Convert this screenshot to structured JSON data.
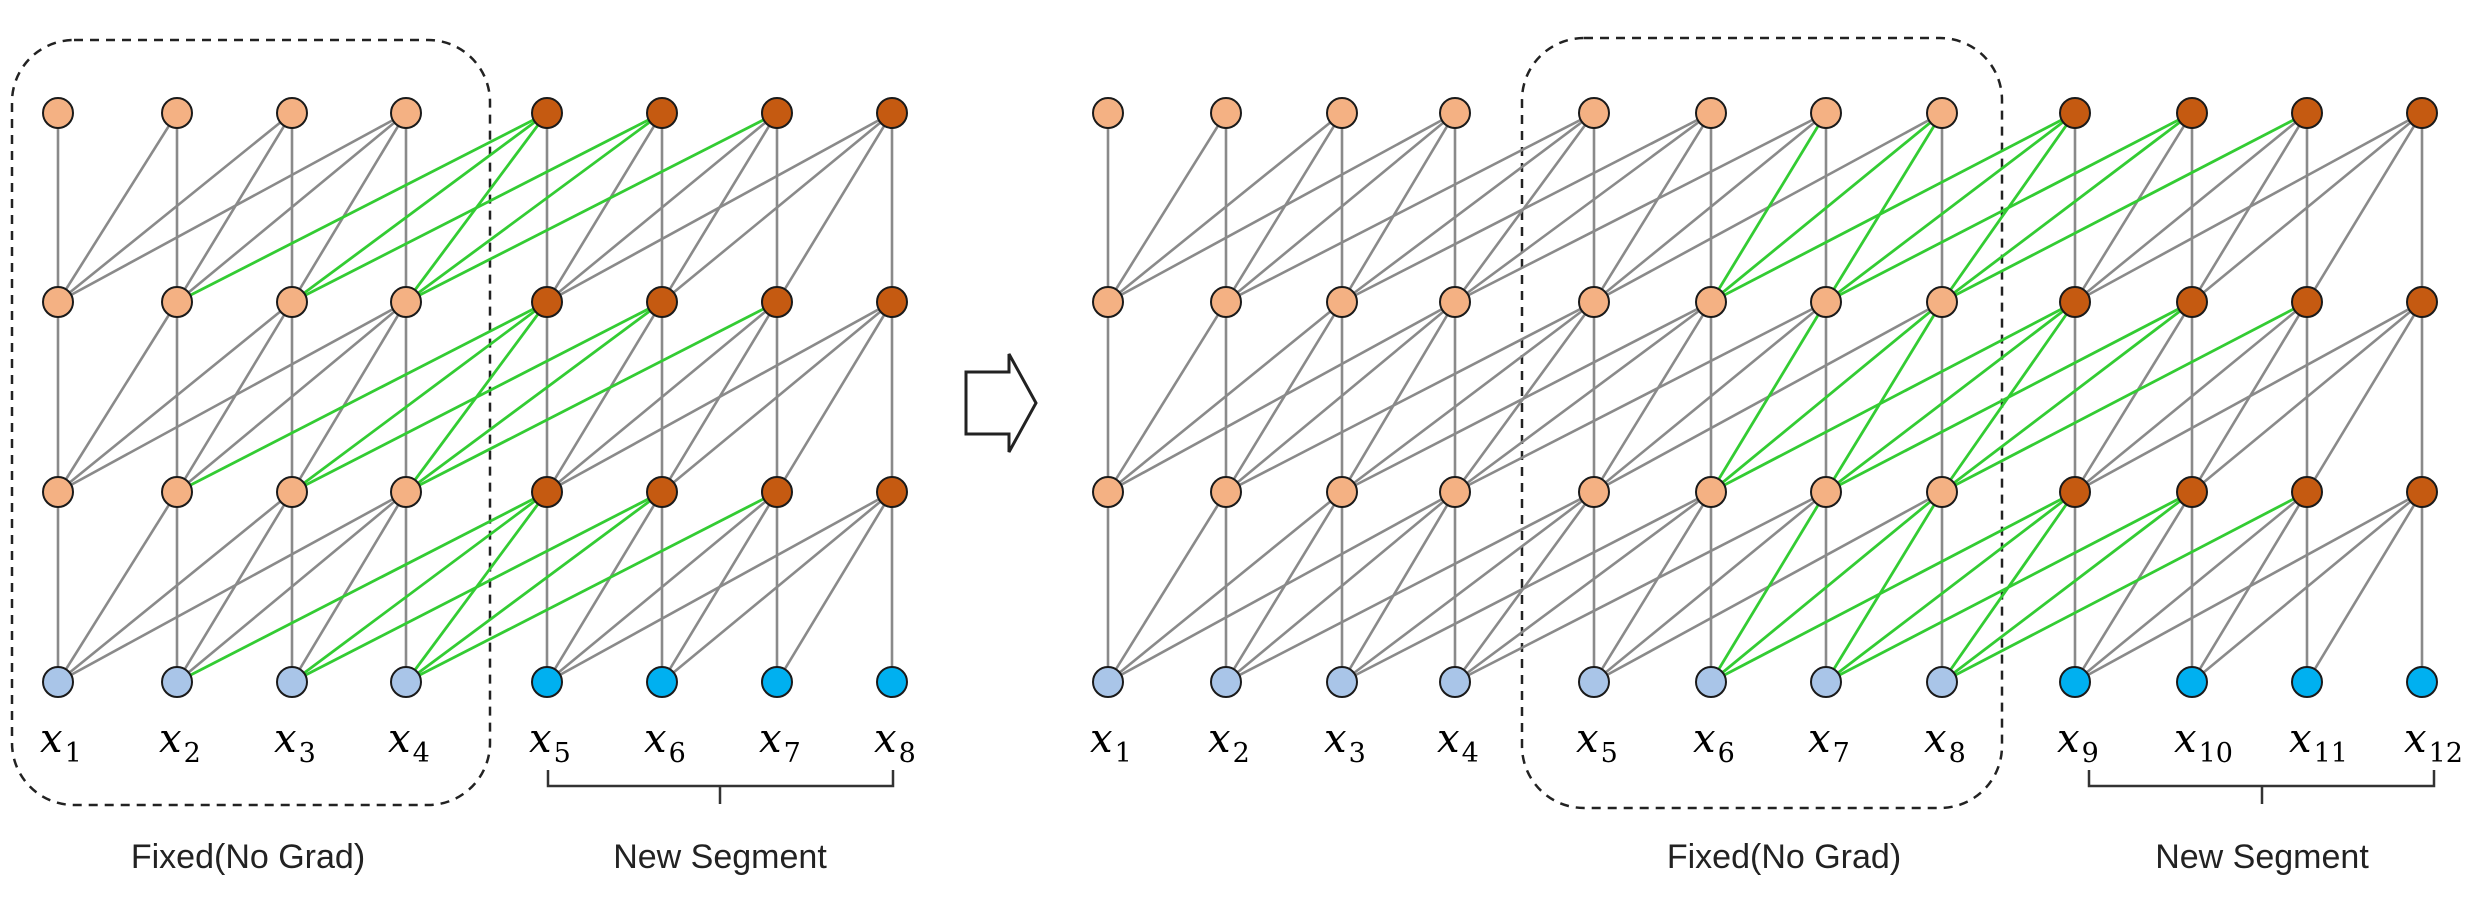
{
  "colors": {
    "fixed_node": "#f4b183",
    "new_node": "#c55a11",
    "fixed_input": "#a9c5e8",
    "new_input": "#00b0f0",
    "edge": "#8a8a8a",
    "highlight_edge": "#33cc33",
    "node_stroke": "#1a1a1a"
  },
  "left_panel": {
    "tokens": [
      "1",
      "2",
      "3",
      "4",
      "5",
      "6",
      "7",
      "8"
    ],
    "fixed_count": 4,
    "caption_fixed": "Fixed(No Grad)",
    "caption_new": "New Segment"
  },
  "arrow": {
    "icon": "hollow-right-arrow-icon"
  },
  "right_panel": {
    "tokens": [
      "1",
      "2",
      "3",
      "4",
      "5",
      "6",
      "7",
      "8",
      "9",
      "10",
      "11",
      "12"
    ],
    "fixed_count": 8,
    "box_start": 4,
    "caption_fixed": "Fixed(No Grad)",
    "caption_new": "New Segment"
  },
  "graph": {
    "layers": 4,
    "context": 3
  }
}
